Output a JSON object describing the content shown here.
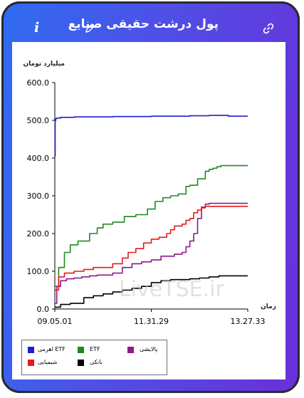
{
  "header": {
    "title": "پول درشت حقیقی صنایع",
    "info_icon": "i",
    "edit_icon": "pencil-icon",
    "link_icon": "link-icon"
  },
  "watermark": "LiveTSE.ir",
  "chart_data": {
    "type": "line",
    "title": "",
    "ylabel": "میلیارد تومان",
    "xlabel": "زمان",
    "ylim": [
      0,
      600
    ],
    "yticks": [
      "600.0",
      "500.0",
      "400.0",
      "300.0",
      "200.0",
      "100.0",
      "0.0"
    ],
    "xticks": [
      "09.05.01",
      "11.31.29",
      "13.27.33"
    ],
    "grid": false,
    "legend_position": "bottom-left",
    "series": [
      {
        "name": "ETF اهرمی",
        "color": "#1f1fd1",
        "x": [
          0,
          0.2,
          0.5,
          1,
          3,
          6,
          10,
          20,
          30,
          40,
          50,
          60,
          70,
          80,
          90,
          100
        ],
        "y": [
          405,
          500,
          505,
          506,
          508,
          508,
          509,
          509,
          510,
          510,
          511,
          511,
          512,
          513,
          511,
          511
        ]
      },
      {
        "name": "ETF",
        "color": "#1f8a1f",
        "x": [
          0,
          2,
          5,
          8,
          12,
          18,
          22,
          25,
          30,
          36,
          42,
          48,
          52,
          56,
          60,
          64,
          68,
          70,
          74,
          78,
          80,
          82,
          84,
          86,
          88,
          90,
          100
        ],
        "y": [
          60,
          110,
          150,
          170,
          180,
          200,
          215,
          225,
          230,
          245,
          250,
          265,
          285,
          295,
          300,
          305,
          325,
          328,
          345,
          365,
          370,
          373,
          377,
          380,
          380,
          380,
          380
        ]
      },
      {
        "name": "پالایشی",
        "color": "#8b1a8b",
        "x": [
          0,
          1,
          3,
          6,
          10,
          14,
          18,
          22,
          26,
          30,
          35,
          40,
          45,
          50,
          55,
          62,
          66,
          68,
          70,
          72,
          74,
          76,
          78,
          80,
          100
        ],
        "y": [
          15,
          60,
          75,
          80,
          82,
          85,
          88,
          90,
          90,
          95,
          110,
          120,
          125,
          130,
          140,
          145,
          150,
          165,
          180,
          200,
          240,
          270,
          278,
          280,
          280
        ]
      },
      {
        "name": "شیمیایی",
        "color": "#e81818",
        "x": [
          0,
          2,
          5,
          10,
          15,
          20,
          25,
          30,
          35,
          38,
          42,
          46,
          50,
          54,
          58,
          60,
          62,
          66,
          68,
          70,
          72,
          74,
          76,
          78,
          80,
          100
        ],
        "y": [
          50,
          85,
          95,
          100,
          105,
          110,
          110,
          120,
          135,
          150,
          160,
          175,
          185,
          190,
          200,
          210,
          220,
          225,
          235,
          240,
          255,
          262,
          268,
          272,
          272,
          272
        ]
      },
      {
        "name": "بانکی",
        "color": "#000000",
        "x": [
          0,
          3,
          8,
          15,
          20,
          25,
          30,
          35,
          40,
          45,
          50,
          55,
          60,
          65,
          70,
          75,
          80,
          85,
          90,
          100
        ],
        "y": [
          5,
          12,
          15,
          30,
          35,
          40,
          45,
          50,
          55,
          60,
          70,
          75,
          78,
          78,
          80,
          82,
          85,
          88,
          88,
          88
        ]
      }
    ]
  }
}
